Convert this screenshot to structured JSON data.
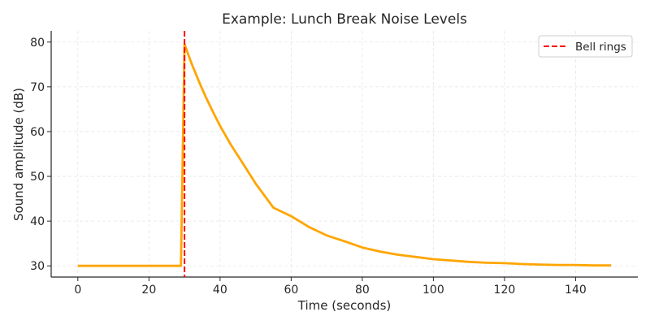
{
  "chart_data": {
    "type": "line",
    "title": "Example: Lunch Break Noise Levels",
    "xlabel": "Time (seconds)",
    "ylabel": "Sound amplitude (dB)",
    "xlim": [
      -7.5,
      157.5
    ],
    "ylim": [
      27.5,
      82.5
    ],
    "xticks": [
      0,
      20,
      40,
      60,
      80,
      100,
      120,
      140
    ],
    "yticks": [
      30,
      40,
      50,
      60,
      70,
      80
    ],
    "grid": true,
    "legend": {
      "position": "upper right",
      "entries": [
        {
          "label": "Bell rings",
          "style": "dashed",
          "color": "#ff0000"
        }
      ]
    },
    "series": [
      {
        "name": "Sound amplitude",
        "color": "#ffa500",
        "x": [
          0,
          10,
          20,
          29,
          30,
          32,
          34,
          36,
          38,
          40,
          43,
          46,
          50,
          55,
          60,
          65,
          70,
          75,
          80,
          85,
          90,
          95,
          100,
          105,
          110,
          115,
          120,
          125,
          130,
          135,
          140,
          145,
          150
        ],
        "values": [
          30,
          30,
          30,
          30,
          79.5,
          75.2,
          71.3,
          67.7,
          64.4,
          61.3,
          57.1,
          53.4,
          48.4,
          43.0,
          41.1,
          38.7,
          36.8,
          35.5,
          34.1,
          33.2,
          32.5,
          32.0,
          31.5,
          31.2,
          30.9,
          30.7,
          30.6,
          30.4,
          30.3,
          30.2,
          30.2,
          30.1,
          30.1
        ]
      }
    ],
    "annotations": [
      {
        "type": "vline",
        "x": 30,
        "color": "#ff0000",
        "style": "dashed",
        "label": "Bell rings"
      }
    ]
  }
}
